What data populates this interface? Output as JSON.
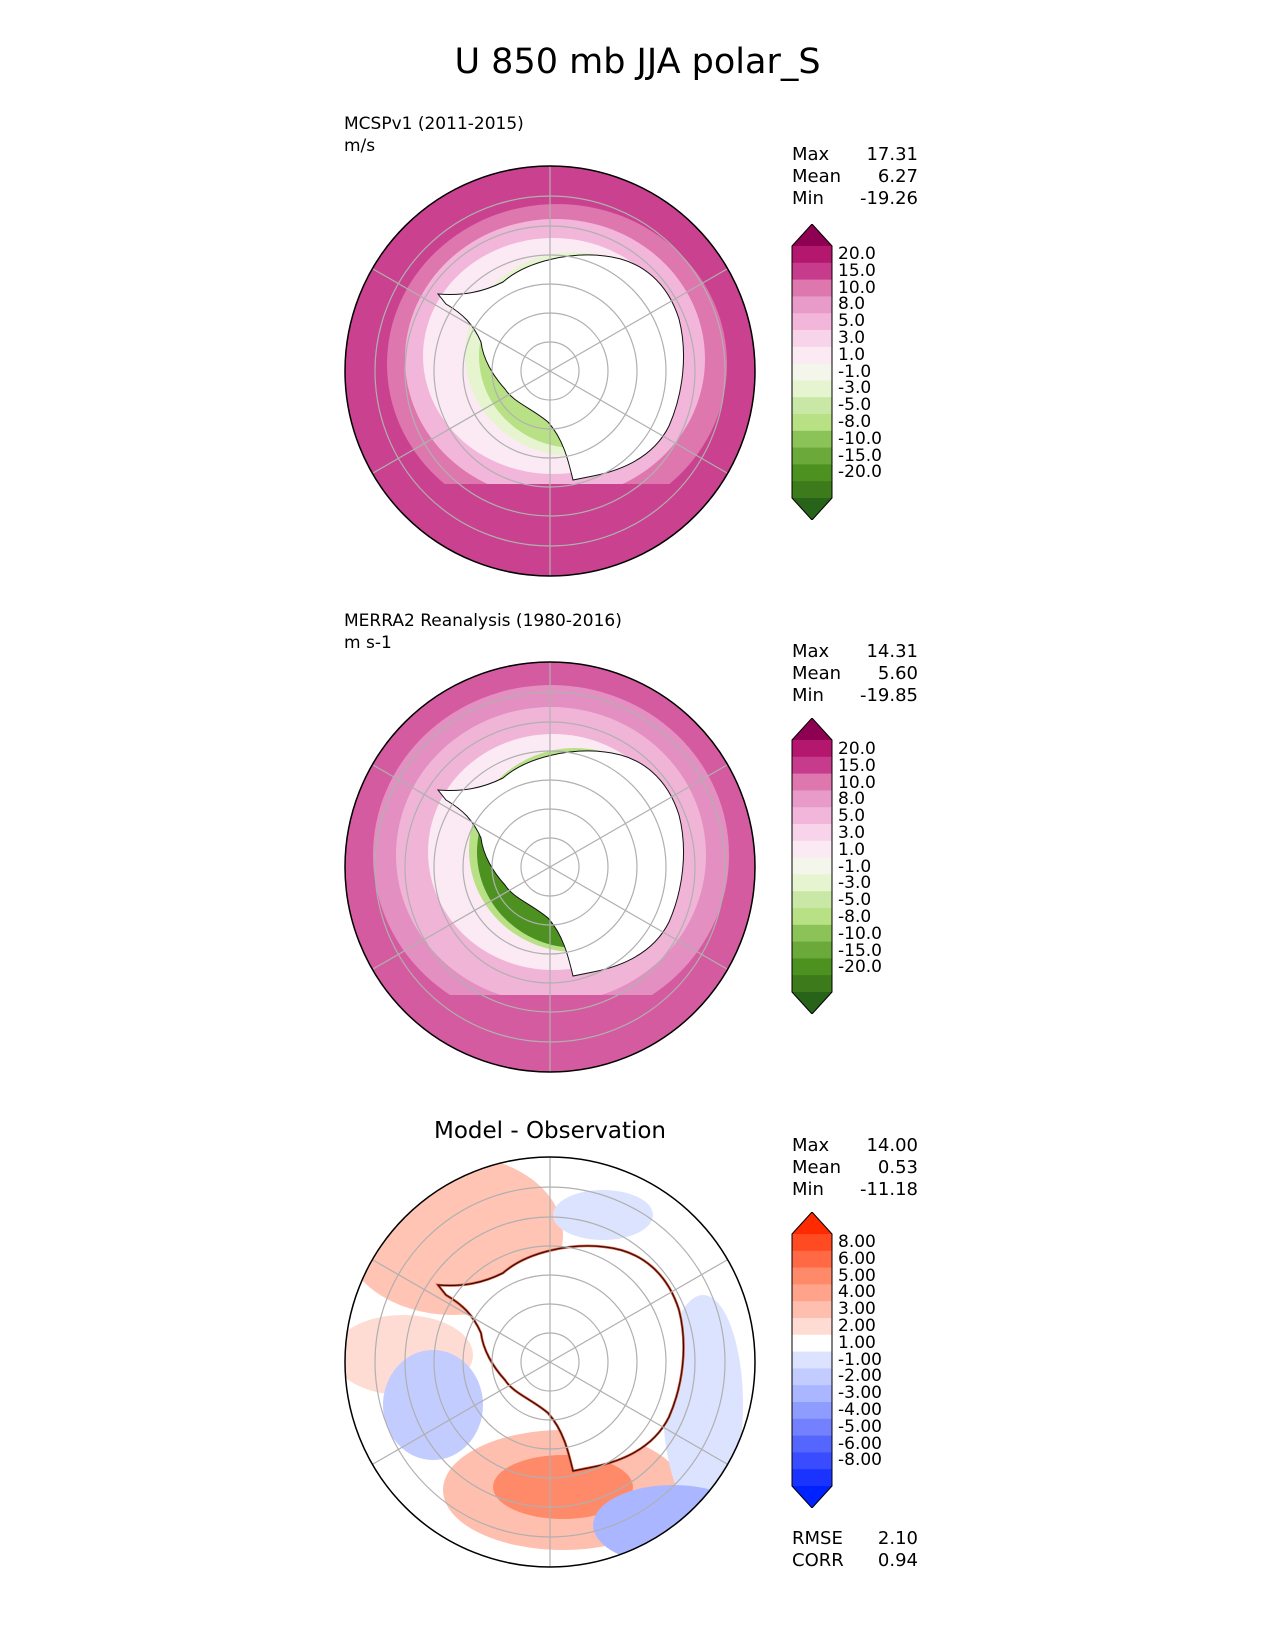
{
  "title": "U 850 mb JJA polar_S",
  "panels": [
    {
      "title": "MCSPv1 (2011-2015)",
      "units": "m/s",
      "stats": [
        {
          "label": "Max",
          "value": "17.31"
        },
        {
          "label": "Mean",
          "value": "6.27"
        },
        {
          "label": "Min",
          "value": "-19.26"
        }
      ],
      "colorbar_labels": [
        "20.0",
        "15.0",
        "10.0",
        "8.0",
        "5.0",
        "3.0",
        "1.0",
        "-1.0",
        "-3.0",
        "-5.0",
        "-8.0",
        "-10.0",
        "-15.0",
        "-20.0"
      ],
      "colorbar_colors": [
        "#8e0152",
        "#b4186e",
        "#c73b8d",
        "#de77ae",
        "#e89bc8",
        "#f1b6da",
        "#f7d4e9",
        "#fbeaf3",
        "#f4f6ec",
        "#e6f5d0",
        "#c9e8a6",
        "#b8e186",
        "#8cc358",
        "#6aa93a",
        "#4d9221",
        "#3d7a1c",
        "#276419"
      ],
      "outer_fill": "#c9418f",
      "inner_fill": "#f7d6ea"
    },
    {
      "title": "MERRA2 Reanalysis (1980-2016)",
      "units": "m s-1",
      "stats": [
        {
          "label": "Max",
          "value": "14.31"
        },
        {
          "label": "Mean",
          "value": "5.60"
        },
        {
          "label": "Min",
          "value": "-19.85"
        }
      ],
      "colorbar_labels": [
        "20.0",
        "15.0",
        "10.0",
        "8.0",
        "5.0",
        "3.0",
        "1.0",
        "-1.0",
        "-3.0",
        "-5.0",
        "-8.0",
        "-10.0",
        "-15.0",
        "-20.0"
      ],
      "colorbar_colors": [
        "#8e0152",
        "#b4186e",
        "#c73b8d",
        "#de77ae",
        "#e89bc8",
        "#f1b6da",
        "#f7d4e9",
        "#fbeaf3",
        "#f4f6ec",
        "#e6f5d0",
        "#c9e8a6",
        "#b8e186",
        "#8cc358",
        "#6aa93a",
        "#4d9221",
        "#3d7a1c",
        "#276419"
      ],
      "outer_fill": "#d45ba0",
      "inner_fill": "#f0b4d7"
    },
    {
      "title": "Model - Observation",
      "stats": [
        {
          "label": "Max",
          "value": "14.00"
        },
        {
          "label": "Mean",
          "value": "0.53"
        },
        {
          "label": "Min",
          "value": "-11.18"
        }
      ],
      "colorbar_labels": [
        "8.00",
        "6.00",
        "5.00",
        "4.00",
        "3.00",
        "2.00",
        "1.00",
        "-1.00",
        "-2.00",
        "-3.00",
        "-4.00",
        "-5.00",
        "-6.00",
        "-8.00"
      ],
      "colorbar_colors": [
        "#ff2a00",
        "#ff4a22",
        "#ff6a45",
        "#ff8a6a",
        "#ffa38a",
        "#ffbfae",
        "#ffdcd3",
        "#ffffff",
        "#dce3ff",
        "#c3ccff",
        "#aab6ff",
        "#8f9cff",
        "#7381ff",
        "#5566ff",
        "#3a4cff",
        "#1a33ff",
        "#0022ff"
      ],
      "extra_stats": [
        {
          "label": "RMSE",
          "value": "2.10"
        },
        {
          "label": "CORR",
          "value": "0.94"
        }
      ]
    }
  ]
}
